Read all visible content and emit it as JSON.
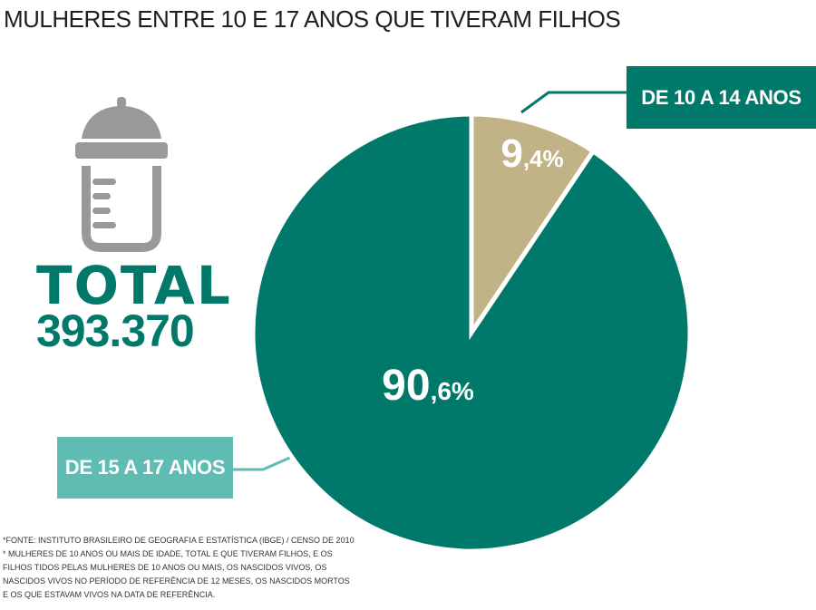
{
  "header": {
    "title": "MULHERES ENTRE 10 E 17 ANOS QUE TIVERAM FILHOS"
  },
  "total": {
    "label": "TOTAL",
    "value": "393.370"
  },
  "icon": {
    "name": "baby-bottle-icon",
    "color": "#999999"
  },
  "colors": {
    "young": "#c2b386",
    "old": "#00796b",
    "old_legend": "#5fbcb2",
    "text": "#ffffff"
  },
  "chart_data": {
    "type": "pie",
    "title": "MULHERES ENTRE 10 E 17 ANOS QUE TIVERAM FILHOS",
    "categories": [
      "DE 10 A 14 ANOS",
      "DE 15 A 17 ANOS"
    ],
    "values": [
      9.4,
      90.6
    ],
    "labels": [
      {
        "int": "9",
        "dec": ",4%"
      },
      {
        "int": "90",
        "dec": ",6%"
      }
    ],
    "legend": "callouts"
  },
  "legend": {
    "young_label": "DE 10 A 14 ANOS",
    "old_label": "DE 15 A 17 ANOS"
  },
  "footnote": {
    "lines": [
      "*FONTE: INSTITUTO BRASILEIRO DE GEOGRAFIA E ESTATÍSTICA (IBGE) / CENSO DE 2010",
      "* MULHERES DE 10 ANOS OU MAIS DE IDADE, TOTAL E QUE TIVERAM FILHOS, E OS",
      "FILHOS TIDOS PELAS MULHERES DE 10 ANOS OU MAIS, OS NASCIDOS VIVOS, OS",
      "NASCIDOS VIVOS NO PERÍODO DE REFERÊNCIA DE 12 MESES, OS NASCIDOS MORTOS",
      "E OS QUE ESTAVAM VIVOS NA DATA DE REFERÊNCIA."
    ]
  }
}
